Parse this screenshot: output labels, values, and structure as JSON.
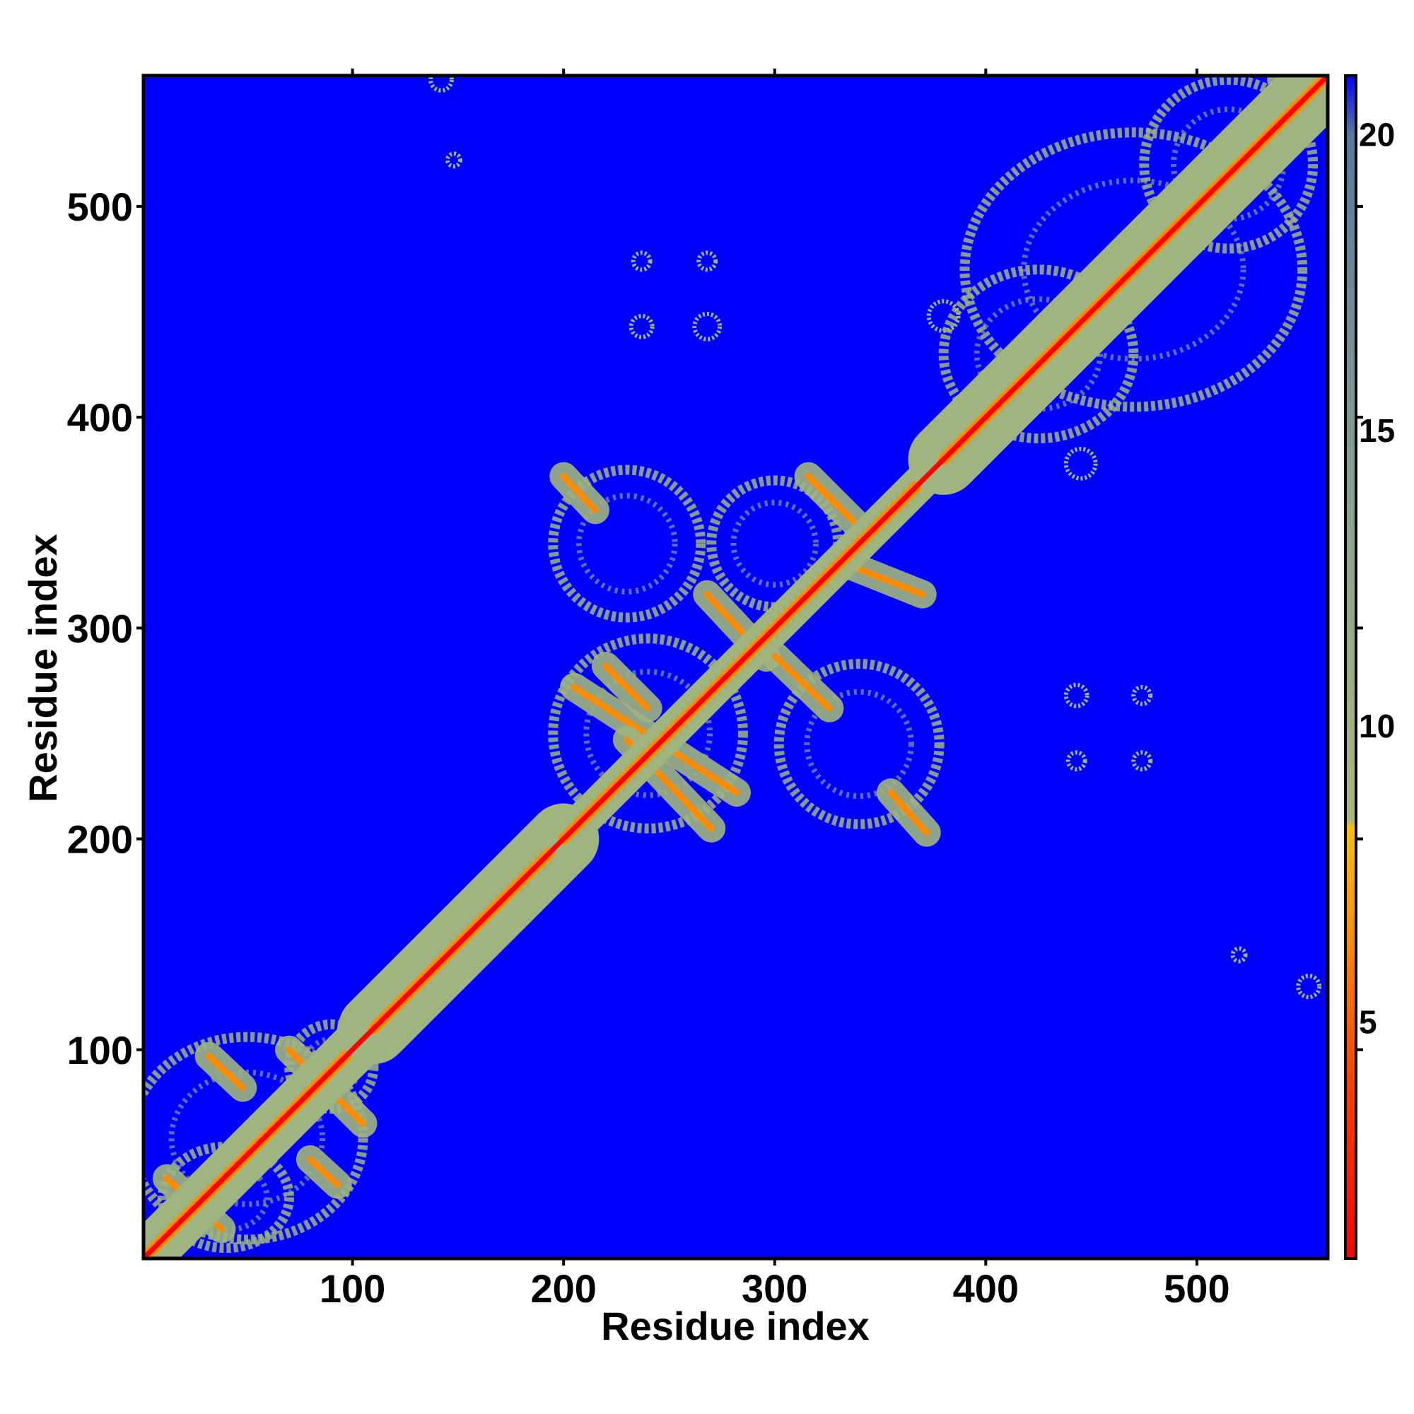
{
  "chart_data": {
    "type": "heatmap",
    "title": "",
    "xlabel": "Residue index",
    "ylabel": "Residue index",
    "xlim": [
      1,
      562
    ],
    "ylim": [
      1,
      562
    ],
    "x_ticks": [
      100,
      200,
      300,
      400,
      500
    ],
    "y_ticks": [
      100,
      200,
      300,
      400,
      500
    ],
    "grid": false,
    "colorbar": {
      "range": [
        1,
        21
      ],
      "ticks": [
        5,
        10,
        15,
        20
      ],
      "stops": [
        {
          "value": 1,
          "color": "#ff0000"
        },
        {
          "value": 4,
          "color": "#ff4000"
        },
        {
          "value": 6.5,
          "color": "#ff9000"
        },
        {
          "value": 8.3,
          "color": "#ffc000"
        },
        {
          "value": 8.4,
          "color": "#a8b878"
        },
        {
          "value": 14,
          "color": "#8aa090"
        },
        {
          "value": 20,
          "color": "#5878a0"
        },
        {
          "value": 21,
          "color": "#0000ff"
        }
      ]
    },
    "colors": {
      "background": "#0000ff",
      "diagonal": "#ff0000",
      "contact": "#ff8c00",
      "halo": "#9fb47e"
    },
    "diagonal_bands": [
      {
        "start": 1,
        "end": 110,
        "width": 10
      },
      {
        "start": 110,
        "end": 200,
        "width": 14
      },
      {
        "start": 200,
        "end": 380,
        "width": 7
      },
      {
        "start": 380,
        "end": 562,
        "width": 14
      }
    ],
    "contact_segments": [
      {
        "x1": 12,
        "y1": 39,
        "x2": 38,
        "y2": 15
      },
      {
        "x1": 32,
        "y1": 97,
        "x2": 48,
        "y2": 82
      },
      {
        "x1": 70,
        "y1": 100,
        "x2": 105,
        "y2": 65
      },
      {
        "x1": 80,
        "y1": 48,
        "x2": 93,
        "y2": 36
      },
      {
        "x1": 200,
        "y1": 372,
        "x2": 215,
        "y2": 356
      },
      {
        "x1": 205,
        "y1": 272,
        "x2": 282,
        "y2": 222
      },
      {
        "x1": 220,
        "y1": 282,
        "x2": 240,
        "y2": 262
      },
      {
        "x1": 230,
        "y1": 247,
        "x2": 270,
        "y2": 205
      },
      {
        "x1": 268,
        "y1": 316,
        "x2": 296,
        "y2": 286
      },
      {
        "x1": 300,
        "y1": 287,
        "x2": 326,
        "y2": 262
      },
      {
        "x1": 316,
        "y1": 372,
        "x2": 340,
        "y2": 348
      },
      {
        "x1": 330,
        "y1": 332,
        "x2": 370,
        "y2": 316
      },
      {
        "x1": 355,
        "y1": 222,
        "x2": 372,
        "y2": 203
      },
      {
        "x1": 540,
        "y1": 560,
        "x2": 548,
        "y2": 540
      }
    ],
    "contact_clusters": [
      {
        "x": 50,
        "y": 58,
        "rx": 55,
        "ry": 48
      },
      {
        "x": 40,
        "y": 30,
        "rx": 30,
        "ry": 24
      },
      {
        "x": 90,
        "y": 92,
        "rx": 20,
        "ry": 20
      },
      {
        "x": 230,
        "y": 340,
        "rx": 35,
        "ry": 35
      },
      {
        "x": 300,
        "y": 340,
        "rx": 30,
        "ry": 30
      },
      {
        "x": 240,
        "y": 250,
        "rx": 45,
        "ry": 45
      },
      {
        "x": 340,
        "y": 245,
        "rx": 38,
        "ry": 38
      },
      {
        "x": 470,
        "y": 470,
        "rx": 80,
        "ry": 65
      },
      {
        "x": 425,
        "y": 430,
        "rx": 45,
        "ry": 40
      },
      {
        "x": 515,
        "y": 520,
        "rx": 40,
        "ry": 40
      }
    ],
    "isolated_spots": [
      {
        "x": 237,
        "y": 474,
        "r": 4
      },
      {
        "x": 268,
        "y": 474,
        "r": 4
      },
      {
        "x": 237,
        "y": 443,
        "r": 5
      },
      {
        "x": 268,
        "y": 443,
        "r": 6
      },
      {
        "x": 443,
        "y": 268,
        "r": 5
      },
      {
        "x": 474,
        "y": 268,
        "r": 4
      },
      {
        "x": 443,
        "y": 237,
        "r": 4
      },
      {
        "x": 474,
        "y": 237,
        "r": 4
      },
      {
        "x": 445,
        "y": 378,
        "r": 7
      },
      {
        "x": 380,
        "y": 448,
        "r": 7
      },
      {
        "x": 142,
        "y": 560,
        "r": 5
      },
      {
        "x": 148,
        "y": 522,
        "r": 3
      },
      {
        "x": 520,
        "y": 145,
        "r": 3
      },
      {
        "x": 553,
        "y": 130,
        "r": 5
      }
    ]
  }
}
